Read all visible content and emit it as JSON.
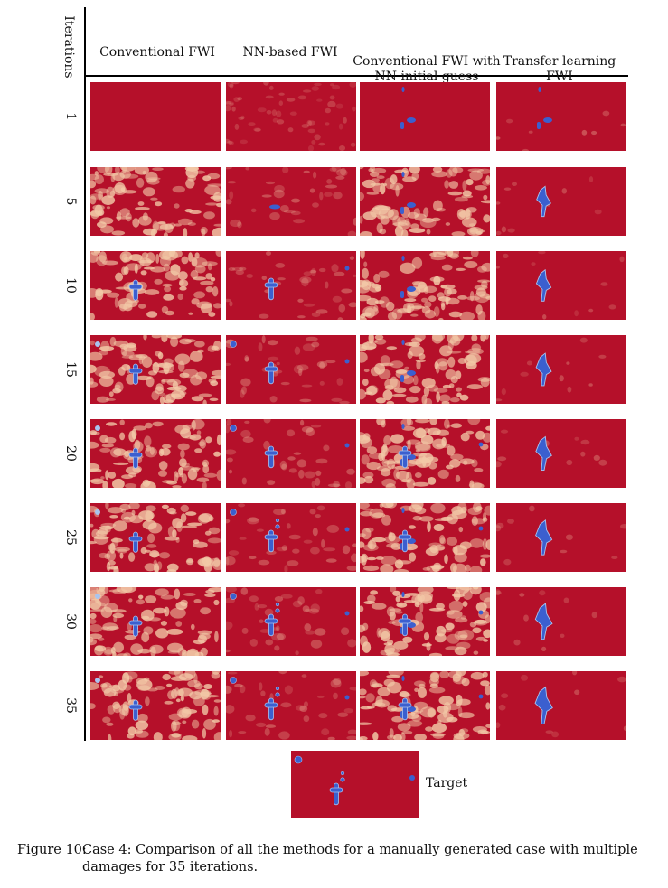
{
  "axis_title": "Iterations",
  "columns": [
    "Conventional FWI",
    "NN-based FWI",
    "Conventional FWI with\nNN initial guess",
    "Transfer learning\nFWI"
  ],
  "rows": [
    "1",
    "5",
    "10",
    "15",
    "20",
    "25",
    "30",
    "35"
  ],
  "target_label": "Target",
  "caption": {
    "lead": "Figure 10:",
    "line1": "Case 4:  Comparison of all the methods for a manually generated case with multiple",
    "line2": "damages for 35 iterations."
  },
  "colors": {
    "background": "#b5102a",
    "speckle": "#f2c9a7",
    "damage": "#3b5fcf",
    "damage_edge": "#a9c4ef"
  }
}
